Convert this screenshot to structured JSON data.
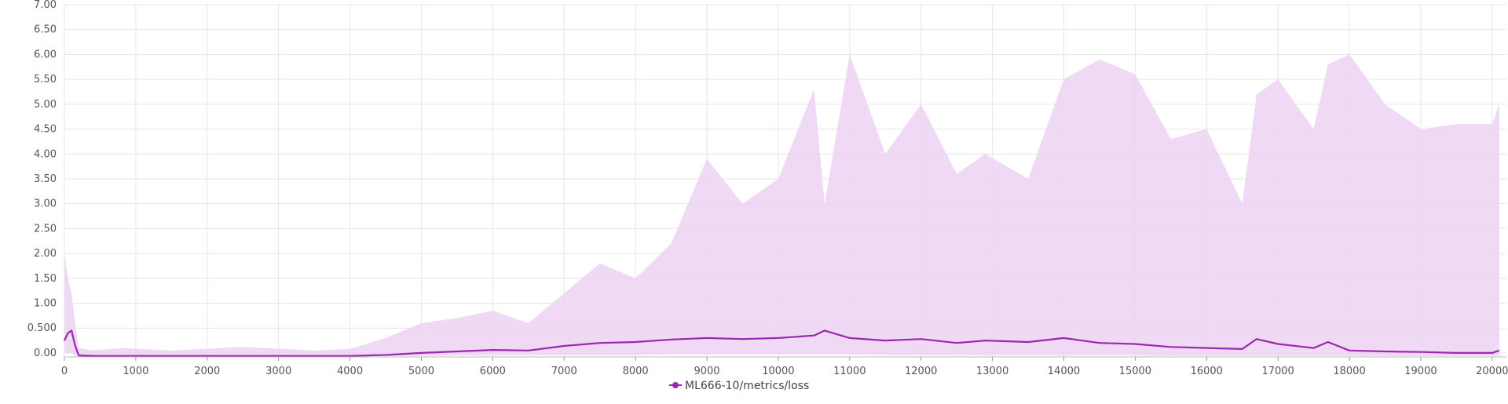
{
  "chart_data": {
    "type": "line",
    "title": "",
    "xlabel": "",
    "ylabel": "",
    "xlim": [
      0,
      20200
    ],
    "ylim": [
      -0.08,
      7.0
    ],
    "grid": true,
    "legend_position": "bottom-center",
    "x_ticks": [
      0,
      1000,
      2000,
      3000,
      4000,
      5000,
      6000,
      7000,
      8000,
      9000,
      10000,
      11000,
      12000,
      13000,
      14000,
      15000,
      16000,
      17000,
      18000,
      19000,
      20000
    ],
    "x_tick_labels": [
      "0",
      "1000",
      "2000",
      "3000",
      "4000",
      "5000",
      "6000",
      "7000",
      "8000",
      "9000",
      "10000",
      "11000",
      "12000",
      "13000",
      "14000",
      "15000",
      "16000",
      "17000",
      "18000",
      "19000",
      "20000"
    ],
    "y_ticks": [
      0,
      0.5,
      1.0,
      1.5,
      2.0,
      2.5,
      3.0,
      3.5,
      4.0,
      4.5,
      5.0,
      5.5,
      6.0,
      6.5,
      7.0
    ],
    "y_tick_labels": [
      "0.00",
      "0.500",
      "1.00",
      "1.50",
      "2.00",
      "2.50",
      "3.00",
      "3.50",
      "4.00",
      "4.50",
      "5.00",
      "5.50",
      "6.00",
      "6.50",
      "7.00"
    ],
    "series": [
      {
        "name": "ML666-10/metrics/loss",
        "color": "#9c27b0",
        "band_color": "#ecd2f2",
        "x": [
          0,
          50,
          100,
          150,
          200,
          400,
          800,
          1500,
          2500,
          3500,
          4000,
          4500,
          5000,
          5500,
          6000,
          6500,
          7000,
          7500,
          8000,
          8500,
          9000,
          9500,
          10000,
          10500,
          10650,
          11000,
          11500,
          12000,
          12500,
          12900,
          13500,
          14000,
          14500,
          15000,
          15500,
          16000,
          16500,
          16700,
          17000,
          17500,
          17700,
          18000,
          18500,
          19000,
          19500,
          20000,
          20100
        ],
        "y": [
          0.25,
          0.4,
          0.45,
          0.15,
          -0.05,
          -0.06,
          -0.06,
          -0.06,
          -0.06,
          -0.06,
          -0.06,
          -0.04,
          0.0,
          0.03,
          0.06,
          0.05,
          0.14,
          0.2,
          0.22,
          0.27,
          0.3,
          0.28,
          0.3,
          0.35,
          0.45,
          0.3,
          0.25,
          0.28,
          0.2,
          0.25,
          0.22,
          0.3,
          0.2,
          0.18,
          0.12,
          0.1,
          0.08,
          0.28,
          0.18,
          0.1,
          0.22,
          0.05,
          0.03,
          0.02,
          0.0,
          0.0,
          0.05
        ],
        "band_upper": [
          2.0,
          1.5,
          1.2,
          0.6,
          0.1,
          0.05,
          0.1,
          0.05,
          0.12,
          0.05,
          0.08,
          0.3,
          0.6,
          0.7,
          0.85,
          0.6,
          1.2,
          1.8,
          1.5,
          2.2,
          3.9,
          3.0,
          3.5,
          5.3,
          3.0,
          6.0,
          4.0,
          5.0,
          3.6,
          4.0,
          3.5,
          5.5,
          5.9,
          5.6,
          4.3,
          4.5,
          3.0,
          5.2,
          5.5,
          4.5,
          5.8,
          6.0,
          5.0,
          4.5,
          4.6,
          4.6,
          5.0
        ],
        "band_lower": [
          0.0,
          0.0,
          0.0,
          -0.06,
          -0.06,
          -0.06,
          -0.06,
          -0.06,
          -0.06,
          -0.06,
          -0.06,
          -0.06,
          -0.06,
          -0.05,
          -0.05,
          -0.05,
          -0.04,
          -0.04,
          -0.04,
          -0.03,
          -0.03,
          -0.03,
          -0.03,
          -0.03,
          -0.03,
          -0.03,
          -0.04,
          -0.04,
          -0.04,
          -0.05,
          -0.05,
          -0.05,
          -0.05,
          -0.05,
          -0.06,
          -0.06,
          -0.06,
          -0.06,
          -0.06,
          -0.06,
          -0.06,
          -0.06,
          -0.06,
          -0.06,
          -0.06,
          -0.06,
          -0.06
        ]
      }
    ]
  },
  "legend": {
    "label": "ML666-10/metrics/loss",
    "marker_color": "#9c27b0"
  }
}
